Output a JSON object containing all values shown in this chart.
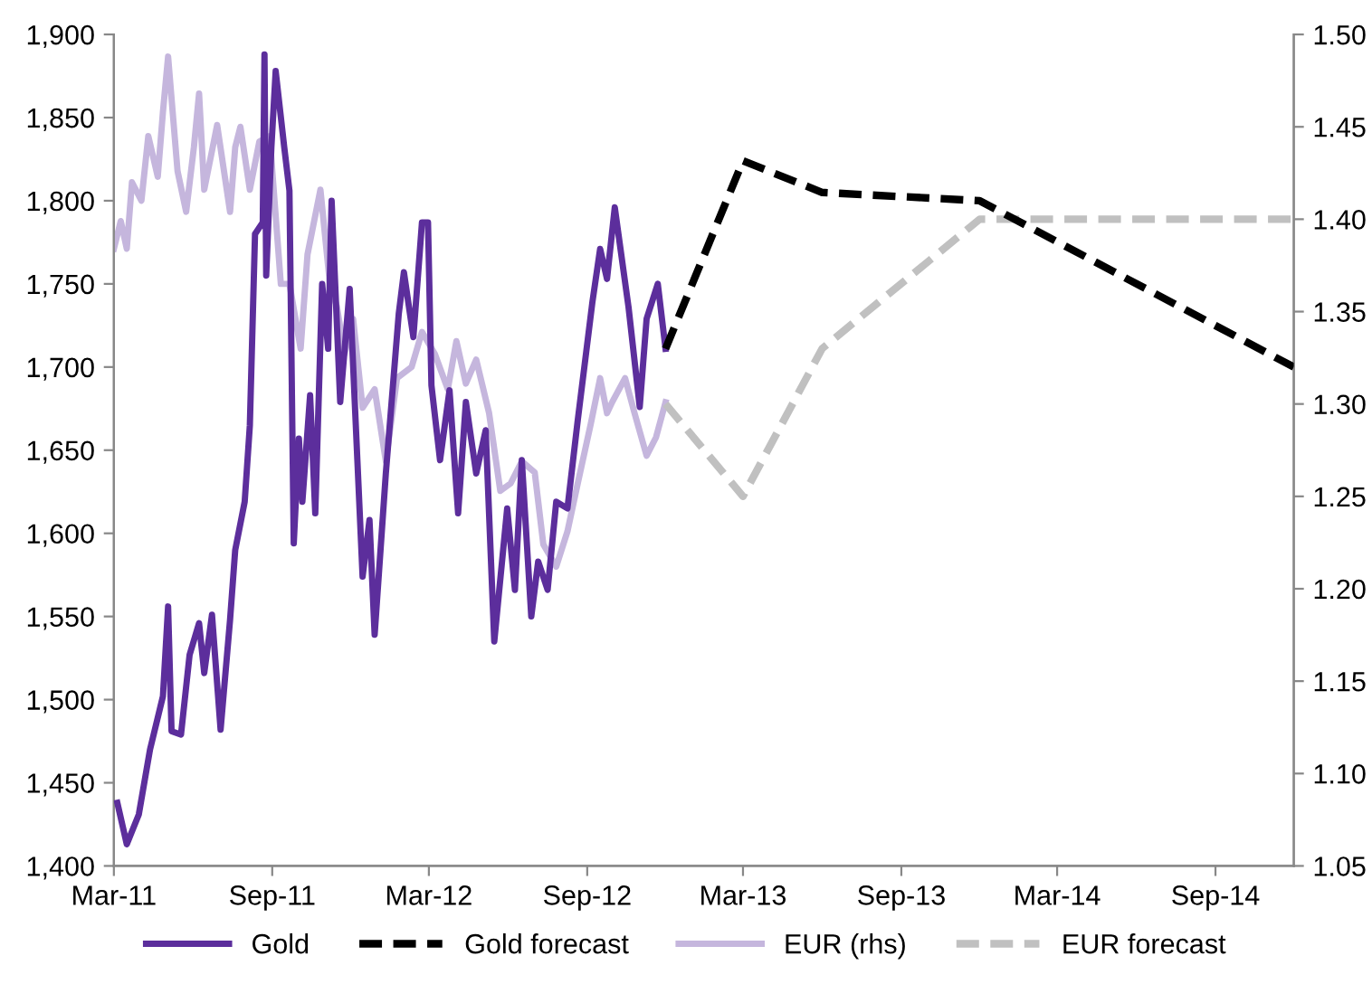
{
  "chart_data": {
    "type": "line",
    "legend": "bottom",
    "grid": false,
    "marker": "none",
    "xlim": [
      "2011-03-01",
      "2014-12-01"
    ],
    "xticks": [
      {
        "value": "2011-03-01",
        "label": "Mar-11"
      },
      {
        "value": "2011-09-01",
        "label": "Sep-11"
      },
      {
        "value": "2012-03-01",
        "label": "Mar-12"
      },
      {
        "value": "2012-09-01",
        "label": "Sep-12"
      },
      {
        "value": "2013-03-01",
        "label": "Mar-13"
      },
      {
        "value": "2013-09-01",
        "label": "Sep-13"
      },
      {
        "value": "2014-03-01",
        "label": "Mar-14"
      },
      {
        "value": "2014-09-01",
        "label": "Sep-14"
      }
    ],
    "ylim": [
      1400,
      1900
    ],
    "yticks": [
      {
        "value": 1400,
        "label": "1,400"
      },
      {
        "value": 1450,
        "label": "1,450"
      },
      {
        "value": 1500,
        "label": "1,500"
      },
      {
        "value": 1550,
        "label": "1,550"
      },
      {
        "value": 1600,
        "label": "1,600"
      },
      {
        "value": 1650,
        "label": "1,650"
      },
      {
        "value": 1700,
        "label": "1,700"
      },
      {
        "value": 1750,
        "label": "1,750"
      },
      {
        "value": 1800,
        "label": "1,800"
      },
      {
        "value": 1850,
        "label": "1,850"
      },
      {
        "value": 1900,
        "label": "1,900"
      }
    ],
    "y2lim": [
      1.05,
      1.5
    ],
    "y2ticks": [
      {
        "value": 1.05,
        "label": "1.05"
      },
      {
        "value": 1.1,
        "label": "1.10"
      },
      {
        "value": 1.15,
        "label": "1.15"
      },
      {
        "value": 1.2,
        "label": "1.20"
      },
      {
        "value": 1.25,
        "label": "1.25"
      },
      {
        "value": 1.3,
        "label": "1.30"
      },
      {
        "value": 1.35,
        "label": "1.35"
      },
      {
        "value": 1.4,
        "label": "1.40"
      },
      {
        "value": 1.45,
        "label": "1.45"
      },
      {
        "value": 1.5,
        "label": "1.50"
      }
    ],
    "series": [
      {
        "name": "EUR (rhs)",
        "color": "#c5b6dd",
        "axis": "y2",
        "line_style": "solid",
        "x": [
          "2011-03-01",
          "2011-03-09",
          "2011-03-16",
          "2011-03-22",
          "2011-04-02",
          "2011-04-10",
          "2011-04-21",
          "2011-04-27",
          "2011-05-03",
          "2011-05-14",
          "2011-05-24",
          "2011-06-02",
          "2011-06-08",
          "2011-06-14",
          "2011-06-29",
          "2011-07-14",
          "2011-07-20",
          "2011-07-26",
          "2011-08-06",
          "2011-08-17",
          "2011-08-29",
          "2011-09-11",
          "2011-09-21",
          "2011-10-04",
          "2011-10-12",
          "2011-10-27",
          "2011-11-07",
          "2011-11-15",
          "2011-11-24",
          "2011-12-04",
          "2011-12-15",
          "2011-12-29",
          "2012-01-11",
          "2012-01-24",
          "2012-02-10",
          "2012-02-22",
          "2012-03-08",
          "2012-03-23",
          "2012-04-02",
          "2012-04-13",
          "2012-04-25",
          "2012-05-10",
          "2012-05-23",
          "2012-06-04",
          "2012-06-17",
          "2012-07-02",
          "2012-07-12",
          "2012-07-27",
          "2012-08-09",
          "2012-08-21",
          "2012-09-05",
          "2012-09-16",
          "2012-09-24",
          "2012-09-30",
          "2012-10-15",
          "2012-10-26",
          "2012-11-09",
          "2012-11-20",
          "2012-12-01"
        ],
        "values": [
          1.384,
          1.399,
          1.384,
          1.42,
          1.41,
          1.445,
          1.423,
          1.458,
          1.488,
          1.426,
          1.404,
          1.439,
          1.468,
          1.416,
          1.451,
          1.404,
          1.439,
          1.45,
          1.416,
          1.442,
          1.445,
          1.365,
          1.365,
          1.33,
          1.381,
          1.416,
          1.365,
          1.353,
          1.327,
          1.346,
          1.298,
          1.308,
          1.269,
          1.314,
          1.32,
          1.339,
          1.327,
          1.308,
          1.334,
          1.311,
          1.324,
          1.295,
          1.253,
          1.257,
          1.269,
          1.263,
          1.224,
          1.212,
          1.231,
          1.257,
          1.289,
          1.314,
          1.295,
          1.301,
          1.314,
          1.295,
          1.272,
          1.282,
          1.301
        ]
      },
      {
        "name": "EUR forecast",
        "color": "#c0c0c0",
        "axis": "y2",
        "line_style": "dashed",
        "x": [
          "2012-12-01",
          "2013-03-01",
          "2013-06-01",
          "2013-12-01",
          "2014-12-01"
        ],
        "values": [
          1.3,
          1.25,
          1.33,
          1.4,
          1.4
        ]
      },
      {
        "name": "Gold",
        "color": "#5c2e9c",
        "axis": "y",
        "line_style": "solid",
        "x": [
          "2011-03-05",
          "2011-03-16",
          "2011-03-30",
          "2011-04-12",
          "2011-04-27",
          "2011-05-03",
          "2011-05-07",
          "2011-05-18",
          "2011-05-28",
          "2011-06-08",
          "2011-06-14",
          "2011-06-23",
          "2011-07-03",
          "2011-07-14",
          "2011-07-20",
          "2011-07-31",
          "2011-08-06",
          "2011-08-12",
          "2011-08-21",
          "2011-08-23",
          "2011-08-25",
          "2011-08-31",
          "2011-09-05",
          "2011-09-15",
          "2011-09-21",
          "2011-09-26",
          "2011-10-02",
          "2011-10-06",
          "2011-10-15",
          "2011-10-21",
          "2011-10-29",
          "2011-11-05",
          "2011-11-09",
          "2011-11-19",
          "2011-11-30",
          "2011-12-15",
          "2011-12-23",
          "2011-12-29",
          "2012-01-11",
          "2012-01-26",
          "2012-02-01",
          "2012-02-12",
          "2012-02-22",
          "2012-02-29",
          "2012-03-04",
          "2012-03-14",
          "2012-03-25",
          "2012-04-04",
          "2012-04-13",
          "2012-04-25",
          "2012-05-06",
          "2012-05-16",
          "2012-05-31",
          "2012-06-09",
          "2012-06-17",
          "2012-06-28",
          "2012-07-06",
          "2012-07-17",
          "2012-07-27",
          "2012-08-09",
          "2012-08-21",
          "2012-09-07",
          "2012-09-16",
          "2012-09-24",
          "2012-10-03",
          "2012-10-19",
          "2012-11-01",
          "2012-11-09",
          "2012-11-22",
          "2012-12-01"
        ],
        "values": [
          1438,
          1413,
          1431,
          1470,
          1502,
          1556,
          1481,
          1479,
          1527,
          1546,
          1516,
          1551,
          1482,
          1548,
          1590,
          1619,
          1665,
          1780,
          1787,
          1888,
          1755,
          1832,
          1878,
          1832,
          1806,
          1594,
          1657,
          1619,
          1683,
          1612,
          1750,
          1711,
          1800,
          1679,
          1747,
          1574,
          1608,
          1539,
          1636,
          1732,
          1757,
          1718,
          1787,
          1787,
          1689,
          1644,
          1686,
          1612,
          1679,
          1636,
          1662,
          1535,
          1615,
          1566,
          1644,
          1550,
          1583,
          1566,
          1619,
          1615,
          1668,
          1739,
          1771,
          1753,
          1796,
          1736,
          1676,
          1729,
          1750,
          1711
        ]
      },
      {
        "name": "Gold forecast",
        "color": "#000000",
        "axis": "y",
        "line_style": "dashed",
        "x": [
          "2012-12-01",
          "2013-03-01",
          "2013-06-01",
          "2013-12-01",
          "2014-12-01"
        ],
        "values": [
          1711,
          1824,
          1805,
          1800,
          1700
        ]
      }
    ]
  }
}
